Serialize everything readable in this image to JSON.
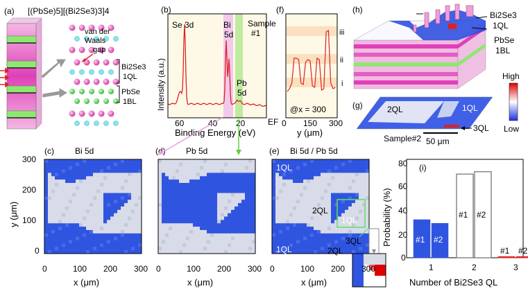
{
  "panel_a": {
    "label": "(a)",
    "formula": "[(PbSe)5][(Bi2Se3)3]4",
    "vdw_line1": "van der",
    "vdw_line2": "Waals",
    "vdw_line3": "gap",
    "bi2se3_line1": "Bi2Se3",
    "bi2se3_line2": "1QL",
    "pbse_line1": "PbSe",
    "pbse_line2": "1BL"
  },
  "panel_b": {
    "label": "(b)",
    "ylabel": "Intensity (a.u.)",
    "xlabel": "Binding Energy (eV)",
    "sample": "Sample",
    "sample_num": "#1",
    "se_label": "Se 3d",
    "bi_label1": "Bi",
    "bi_label2": "5d",
    "pb_label1": "Pb",
    "pb_label2": "5d",
    "ticks": [
      "60",
      "40",
      "20"
    ],
    "ef": "EF"
  },
  "panel_f": {
    "label": "(f)",
    "annotation": "@x = 300",
    "xlabel": "y (μm)",
    "ticks": [
      "0",
      "150",
      "300"
    ],
    "levels": [
      "iii",
      "ii",
      "i"
    ]
  },
  "panel_c": {
    "label": "(c)",
    "title": "Bi 5d"
  },
  "panel_d": {
    "label": "(d)",
    "title": "Pb 5d"
  },
  "panel_e": {
    "label": "(e)",
    "title": "Bi 5d / Pb 5d",
    "ql1_top": "1QL",
    "ql2": "2QL",
    "ql1_box": "1QL",
    "ql1_bottom": "1QL",
    "ql2_bottom": "2QL",
    "ql3": "3QL"
  },
  "maps": {
    "ylabel": "y (μm)",
    "xlabel": "x (μm)",
    "xticks": [
      "0",
      "100",
      "200",
      "300"
    ],
    "yticks": [
      "300",
      "200",
      "100",
      "0"
    ]
  },
  "panel_h": {
    "label": "(h)",
    "bi2se3_line1": "Bi2Se3",
    "bi2se3_line2": "1QL",
    "pbse_line1": "PbSe",
    "pbse_line2": "1BL",
    "high": "High",
    "low": "Low"
  },
  "panel_g": {
    "label": "(g)",
    "ql2": "2QL",
    "ql1": "1QL",
    "ql3": "3QL",
    "sample": "Sample#2",
    "scale": "50 μm"
  },
  "panel_i": {
    "label": "(i)",
    "ylabel": "Probability (%)",
    "xlabel": "Number of Bi2Se3 QL",
    "yticks": [
      "80",
      "60",
      "40",
      "20",
      "0"
    ],
    "sample_labels": [
      "#1",
      "#2"
    ],
    "colors": {
      "blue": "#2f55e0",
      "red": "#e02020",
      "gray": "#888888"
    }
  },
  "chart_data": {
    "type": "bar",
    "title": "(i)",
    "xlabel": "Number of Bi2Se3 QL",
    "ylabel": "Probability (%)",
    "categories": [
      "1",
      "2",
      "3"
    ],
    "ylim": [
      0,
      80
    ],
    "series": [
      {
        "name": "#1",
        "values": [
          31,
          68,
          1
        ]
      },
      {
        "name": "#2",
        "values": [
          28,
          70,
          1
        ]
      }
    ]
  }
}
